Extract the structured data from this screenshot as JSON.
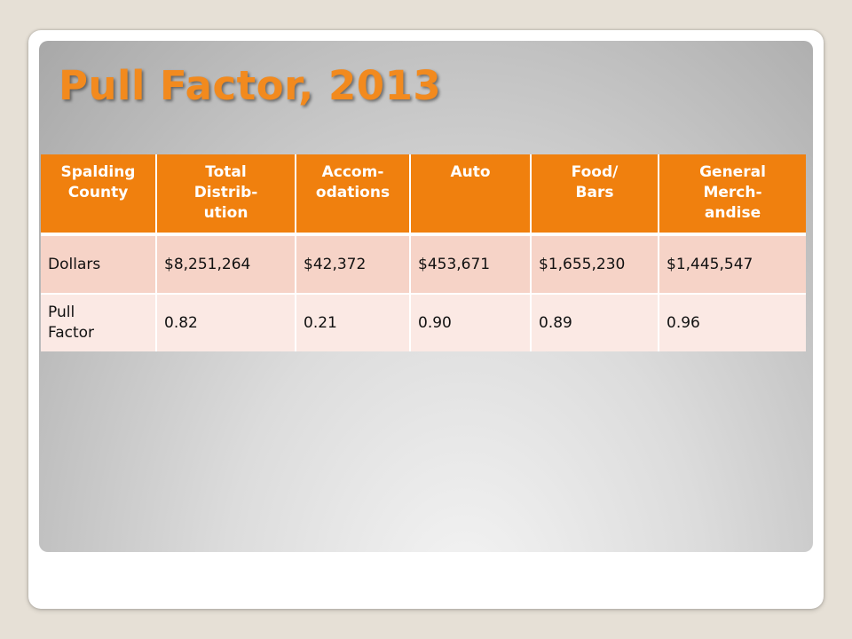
{
  "slide": {
    "title": "Pull Factor, 2013"
  },
  "table": {
    "headers": [
      [
        "Spalding",
        "County"
      ],
      [
        "Total",
        "Distrib-",
        "ution"
      ],
      [
        "Accom-",
        "odations"
      ],
      [
        "Auto"
      ],
      [
        "Food/",
        "Bars"
      ],
      [
        "General",
        "Merch-",
        "andise"
      ]
    ],
    "rows": [
      {
        "label": [
          "Dollars"
        ],
        "cells": [
          "$8,251,264",
          "$42,372",
          "$453,671",
          "$1,655,230",
          "$1,445,547"
        ]
      },
      {
        "label": [
          "Pull",
          "Factor"
        ],
        "cells": [
          "0.82",
          "0.21",
          "0.90",
          "0.89",
          "0.96"
        ]
      }
    ]
  },
  "colors": {
    "accent": "#f0800e",
    "title": "#f28a1e",
    "row_dark": "#f6d3c7",
    "row_light": "#fbe9e4"
  }
}
